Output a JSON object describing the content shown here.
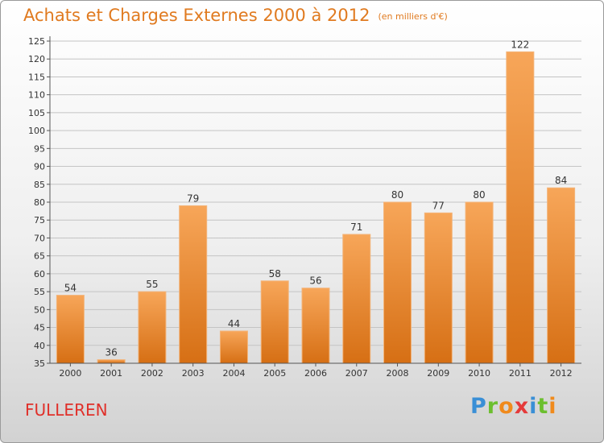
{
  "header": {
    "title": "Achats et Charges Externes 2000 à 2012",
    "subtitle": "(en milliers d'€)"
  },
  "footer": {
    "commune": "FULLEREN",
    "brand": "Proxiti",
    "brand_letters": [
      {
        "char": "P",
        "color": "#3a8fd6"
      },
      {
        "char": "r",
        "color": "#6cbf2f"
      },
      {
        "char": "o",
        "color": "#f08a1c"
      },
      {
        "char": "x",
        "color": "#e53a3a"
      },
      {
        "char": "i",
        "color": "#3a8fd6"
      },
      {
        "char": "t",
        "color": "#6cbf2f"
      },
      {
        "char": "i",
        "color": "#f08a1c"
      }
    ]
  },
  "colors": {
    "title": "#e07a1f",
    "commune": "#e0302a",
    "bar_light": "#f7a659",
    "bar_dark": "#d66f14"
  },
  "chart_data": {
    "type": "bar",
    "title": "Achats et Charges Externes 2000 à 2012",
    "subtitle": "(en milliers d'€)",
    "xlabel": "",
    "ylabel": "",
    "categories": [
      "2000",
      "2001",
      "2002",
      "2003",
      "2004",
      "2005",
      "2006",
      "2007",
      "2008",
      "2009",
      "2010",
      "2011",
      "2012"
    ],
    "values": [
      54,
      36,
      55,
      79,
      44,
      58,
      56,
      71,
      80,
      77,
      80,
      122,
      84
    ],
    "ylim": [
      35,
      125
    ],
    "yticks": [
      35,
      40,
      45,
      50,
      55,
      60,
      65,
      70,
      75,
      80,
      85,
      90,
      95,
      100,
      105,
      110,
      115,
      120,
      125
    ],
    "grid": true,
    "legend": "none"
  }
}
